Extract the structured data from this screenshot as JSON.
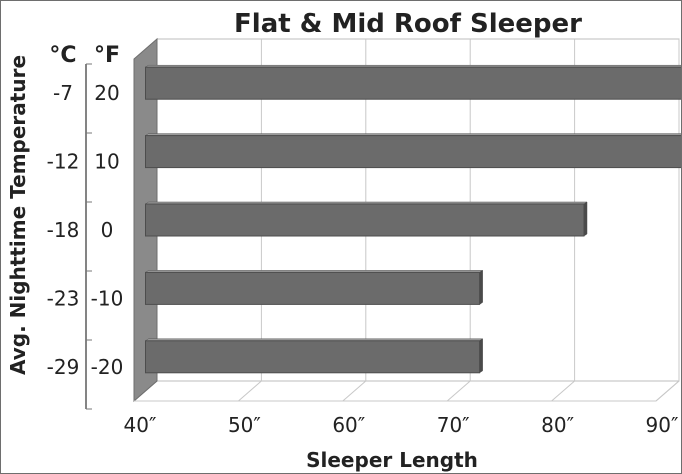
{
  "chart_data": {
    "type": "bar",
    "orientation": "horizontal",
    "three_d": true,
    "title": "Flat & Mid Roof Sleeper",
    "xlabel": "Sleeper Length",
    "ylabel": "Avg. Nighttime Temperature",
    "y_unit_headers": [
      "°C",
      "°F"
    ],
    "categories_c": [
      "-7",
      "-12",
      "-18",
      "-23",
      "-29"
    ],
    "categories_f": [
      "20",
      "10",
      "0",
      "-10",
      "-20"
    ],
    "values": [
      92,
      92,
      82,
      72,
      72
    ],
    "xlim": [
      40,
      90
    ],
    "xticks": [
      40,
      50,
      60,
      70,
      80,
      90
    ],
    "xtick_labels": [
      "40″",
      "50″",
      "60″",
      "70″",
      "80″",
      "90″"
    ],
    "bar_color": "#6b6b6b",
    "grid": true
  }
}
